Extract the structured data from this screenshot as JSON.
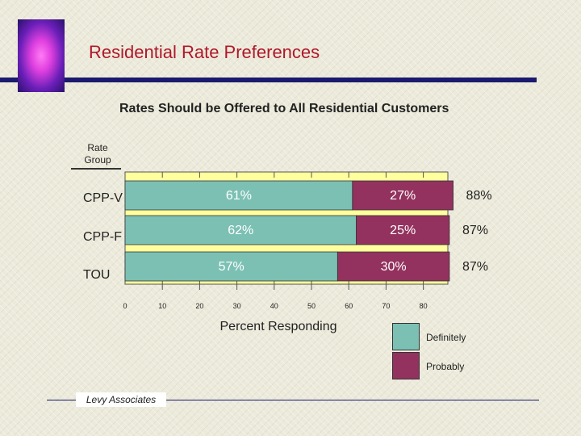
{
  "title": "Residential Rate Preferences",
  "footer": "Levy Associates",
  "colors": {
    "definitely": "#7cc0b4",
    "probably": "#93325e",
    "plot_bg": "#ffff9e",
    "title": "#b0182a"
  },
  "chart_data": {
    "type": "bar",
    "orientation": "horizontal",
    "stacked": true,
    "title": "Rates Should be Offered to All Residential Customers",
    "ylabel": "Rate Group",
    "xlabel": "Percent Responding",
    "categories": [
      "CPP-V",
      "CPP-F",
      "TOU"
    ],
    "series": [
      {
        "name": "Definitely",
        "values": [
          61,
          62,
          57
        ],
        "labels": [
          "61%",
          "62%",
          "57%"
        ]
      },
      {
        "name": "Probably",
        "values": [
          27,
          25,
          30
        ],
        "labels": [
          "27%",
          "25%",
          "30%"
        ]
      }
    ],
    "totals": [
      "88%",
      "87%",
      "87%"
    ],
    "xticks": [
      "0",
      "10",
      "20",
      "30",
      "40",
      "50",
      "60",
      "70",
      "80"
    ],
    "xlim": [
      0,
      90
    ],
    "legend": "bottom-right"
  }
}
